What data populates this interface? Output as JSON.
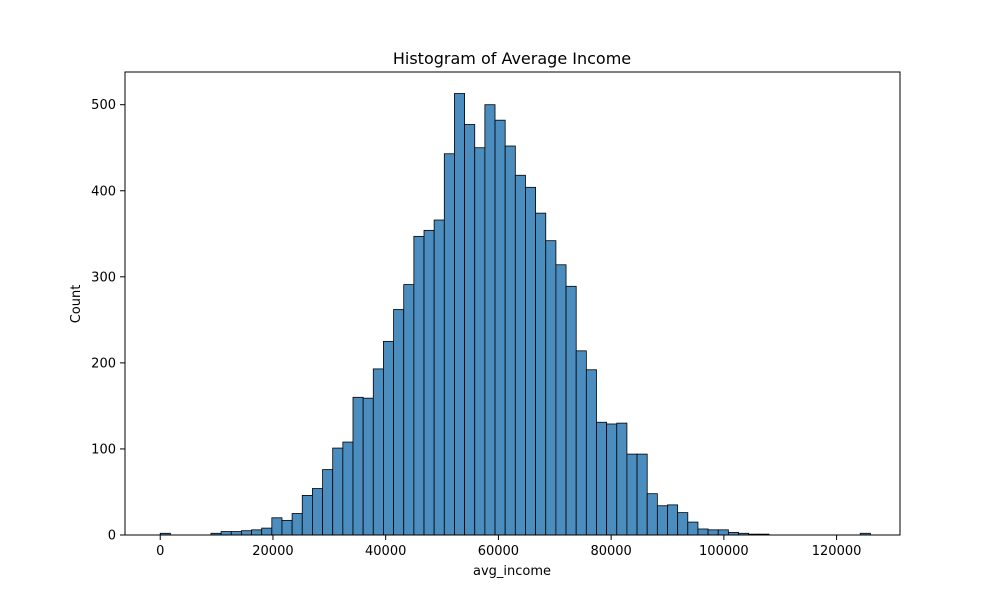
{
  "chart_data": {
    "type": "bar",
    "title": "Histogram of Average Income",
    "xlabel": "avg_income",
    "ylabel": "Count",
    "bin_start": 0,
    "bin_width": 1800,
    "counts": [
      2,
      0,
      0,
      0,
      0,
      2,
      4,
      4,
      5,
      6,
      8,
      20,
      17,
      25,
      46,
      54,
      76,
      101,
      108,
      160,
      159,
      193,
      225,
      262,
      291,
      347,
      354,
      366,
      443,
      513,
      477,
      450,
      500,
      482,
      452,
      418,
      404,
      374,
      342,
      314,
      289,
      214,
      192,
      131,
      129,
      130,
      94,
      94,
      48,
      34,
      35,
      26,
      15,
      7,
      6,
      6,
      3,
      2,
      1,
      1,
      0,
      0,
      0,
      0,
      0,
      0,
      0,
      0,
      0,
      2
    ],
    "xlim": [
      -6250,
      131250
    ],
    "ylim": [
      0,
      538
    ],
    "xticks": [
      0,
      20000,
      40000,
      60000,
      80000,
      100000,
      120000
    ],
    "yticks": [
      0,
      100,
      200,
      300,
      400,
      500
    ],
    "bar_color": "#4c8dbf",
    "edge_color": "#000000",
    "grid": false,
    "legend": "none"
  }
}
